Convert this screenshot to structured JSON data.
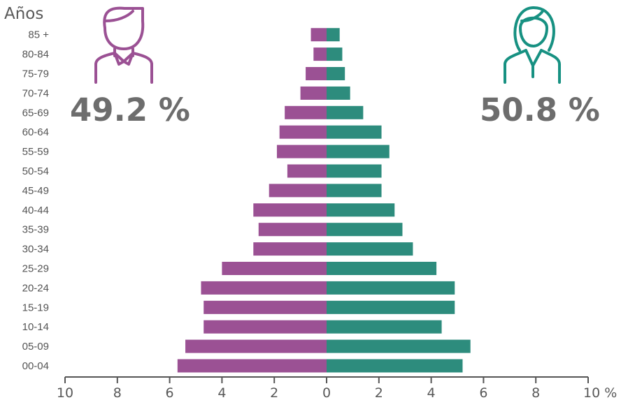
{
  "chart_data": {
    "type": "bar",
    "orientation": "horizontal",
    "subtype": "population-pyramid",
    "ylabel": "Años",
    "xlabel": "",
    "x_unit": "%",
    "xlim": [
      -10,
      10
    ],
    "x_ticks": [
      "10",
      "8",
      "6",
      "4",
      "2",
      "0",
      "2",
      "4",
      "6",
      "8",
      "10 %"
    ],
    "categories": [
      "00-04",
      "05-09",
      "10-14",
      "15-19",
      "20-24",
      "25-29",
      "30-34",
      "35-39",
      "40-44",
      "45-49",
      "50-54",
      "55-59",
      "60-64",
      "65-69",
      "70-74",
      "75-79",
      "80-84",
      "85 +"
    ],
    "series": [
      {
        "values": [
          5.7,
          5.4,
          4.7,
          4.7,
          4.8,
          4.0,
          2.8,
          2.6,
          2.8,
          2.2,
          1.5,
          1.9,
          1.8,
          1.6,
          1.0,
          0.8,
          0.5,
          0.6
        ],
        "color": "#9b5194",
        "side": "left"
      },
      {
        "values": [
          5.2,
          5.5,
          4.4,
          4.9,
          4.9,
          4.2,
          3.3,
          2.9,
          2.6,
          2.1,
          2.1,
          2.4,
          2.1,
          1.4,
          0.9,
          0.7,
          0.6,
          0.5
        ],
        "color": "#2d8c7d",
        "side": "right"
      }
    ],
    "grid": false,
    "legend": "none"
  },
  "men": {
    "percent": "49.2 %",
    "icon": "man-icon",
    "color": "#9b5194"
  },
  "women": {
    "percent": "50.8 %",
    "icon": "woman-icon",
    "color": "#179182"
  }
}
